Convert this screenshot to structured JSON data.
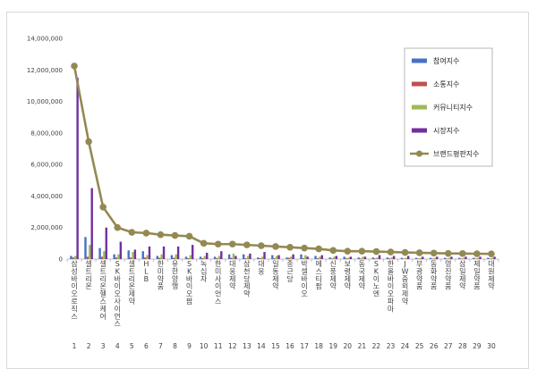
{
  "chart_data": {
    "type": "bar",
    "ylim": [
      0,
      14000000
    ],
    "yticks": [
      "0",
      "2,000,000",
      "4,000,000",
      "6,000,000",
      "8,000,000",
      "10,000,000",
      "12,000,000",
      "14,000,000"
    ],
    "grid": false,
    "legend_position": "right",
    "categories": [
      "삼성바이오로직스",
      "셀트리온",
      "셀트리온헬스케어",
      "SK바이오사이언스",
      "셀트리온제약",
      "HLB",
      "한미약품",
      "유한양행",
      "SK바이오팜",
      "녹십자",
      "한미사이언스",
      "대웅제약",
      "삼천당제약",
      "대웅",
      "일동제약",
      "종근당",
      "박셀바이오",
      "에스티팜",
      "신풍제약",
      "보령제약",
      "동국제약",
      "SK이노엔",
      "한올바이오파마",
      "JW중외제약",
      "부광약품",
      "동화약품",
      "영진약품",
      "삼일제약",
      "제일약품",
      "대원제약"
    ],
    "ranks": [
      "1",
      "2",
      "3",
      "4",
      "5",
      "6",
      "7",
      "8",
      "9",
      "10",
      "11",
      "12",
      "13",
      "14",
      "15",
      "16",
      "17",
      "18",
      "19",
      "20",
      "21",
      "22",
      "23",
      "24",
      "25",
      "26",
      "27",
      "28",
      "29",
      "30"
    ],
    "series": [
      {
        "name": "참여지수",
        "kind": "bar",
        "color": "#4472c4",
        "values": [
          200000,
          1400000,
          700000,
          300000,
          550000,
          500000,
          200000,
          250000,
          150000,
          150000,
          150000,
          300000,
          300000,
          100000,
          250000,
          100000,
          300000,
          200000,
          100000,
          150000,
          100000,
          100000,
          100000,
          80000,
          80000,
          80000,
          80000,
          80000,
          80000,
          80000
        ]
      },
      {
        "name": "소통지수",
        "kind": "bar",
        "color": "#c0504d",
        "values": [
          100000,
          150000,
          150000,
          100000,
          100000,
          100000,
          80000,
          80000,
          60000,
          60000,
          60000,
          80000,
          50000,
          50000,
          50000,
          80000,
          50000,
          50000,
          40000,
          50000,
          40000,
          40000,
          40000,
          30000,
          30000,
          30000,
          30000,
          30000,
          30000,
          30000
        ]
      },
      {
        "name": "커뮤니티지수",
        "kind": "bar",
        "color": "#9bbb59",
        "values": [
          200000,
          900000,
          500000,
          300000,
          450000,
          250000,
          300000,
          300000,
          250000,
          200000,
          200000,
          350000,
          200000,
          150000,
          200000,
          150000,
          250000,
          150000,
          150000,
          100000,
          150000,
          100000,
          100000,
          80000,
          80000,
          80000,
          80000,
          80000,
          80000,
          80000
        ]
      },
      {
        "name": "시장지수",
        "kind": "bar",
        "color": "#7030a0",
        "values": [
          11500000,
          4500000,
          2000000,
          1100000,
          600000,
          800000,
          800000,
          800000,
          900000,
          400000,
          500000,
          200000,
          350000,
          450000,
          250000,
          300000,
          150000,
          250000,
          200000,
          150000,
          150000,
          250000,
          200000,
          200000,
          150000,
          150000,
          150000,
          150000,
          150000,
          150000
        ]
      },
      {
        "name": "브랜드평판지수",
        "kind": "line",
        "color": "#938953",
        "values": [
          12250000,
          7450000,
          3300000,
          2000000,
          1700000,
          1650000,
          1550000,
          1500000,
          1450000,
          1000000,
          950000,
          950000,
          900000,
          850000,
          800000,
          750000,
          700000,
          650000,
          550000,
          500000,
          500000,
          480000,
          450000,
          420000,
          400000,
          380000,
          360000,
          350000,
          340000,
          330000
        ]
      }
    ]
  }
}
